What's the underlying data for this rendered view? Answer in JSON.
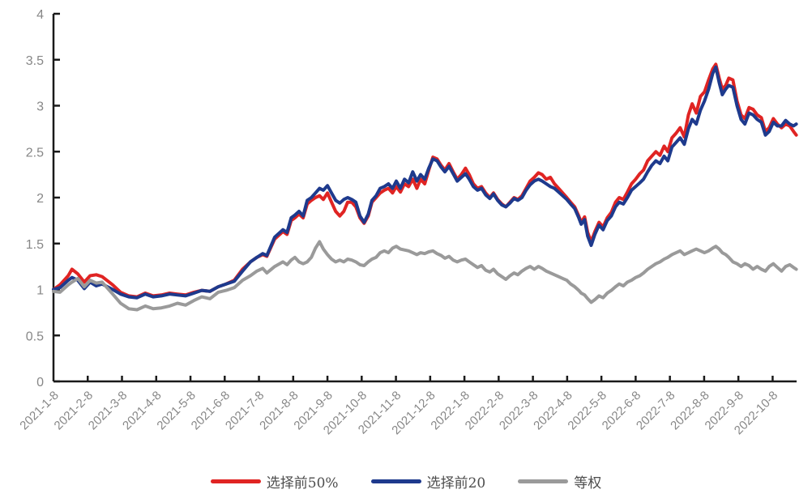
{
  "chart_data": {
    "type": "line",
    "title": "",
    "grid": false,
    "legend_position": "bottom",
    "x_axis": {
      "unit": "months since 2021-1-8",
      "range": [
        0,
        21.7
      ],
      "tick_interval_months": 1,
      "tick_labels": [
        "2021-1-8",
        "2021-2-8",
        "2021-3-8",
        "2021-4-8",
        "2021-5-8",
        "2021-6-8",
        "2021-7-8",
        "2021-8-8",
        "2021-9-8",
        "2021-10-8",
        "2021-11-8",
        "2021-12-8",
        "2022-1-8",
        "2022-2-8",
        "2022-3-8",
        "2022-4-8",
        "2022-5-8",
        "2022-6-8",
        "2022-7-8",
        "2022-8-8",
        "2022-9-8",
        "2022-10-8"
      ]
    },
    "y_axis": {
      "range": [
        0,
        4
      ],
      "tick_labels": [
        "0",
        "0.5",
        "1",
        "1.5",
        "2",
        "2.5",
        "3",
        "3.5",
        "4"
      ],
      "tick_values": [
        0,
        0.5,
        1,
        1.5,
        2,
        2.5,
        3,
        3.5,
        4
      ]
    },
    "x_months": [
      0.0,
      0.19,
      0.43,
      0.54,
      0.71,
      0.9,
      1.07,
      1.25,
      1.42,
      1.73,
      1.96,
      2.2,
      2.44,
      2.68,
      2.91,
      3.15,
      3.39,
      3.62,
      3.86,
      4.1,
      4.33,
      4.57,
      4.81,
      5.04,
      5.28,
      5.52,
      5.75,
      5.94,
      6.11,
      6.23,
      6.46,
      6.7,
      6.82,
      6.94,
      7.05,
      7.17,
      7.29,
      7.41,
      7.53,
      7.65,
      7.77,
      7.88,
      8.0,
      8.12,
      8.24,
      8.36,
      8.48,
      8.59,
      8.71,
      8.83,
      8.95,
      9.07,
      9.19,
      9.3,
      9.42,
      9.54,
      9.66,
      9.78,
      9.9,
      10.01,
      10.13,
      10.25,
      10.37,
      10.49,
      10.61,
      10.72,
      10.84,
      10.96,
      11.08,
      11.2,
      11.32,
      11.43,
      11.55,
      11.67,
      11.79,
      11.91,
      12.03,
      12.14,
      12.26,
      12.38,
      12.5,
      12.62,
      12.74,
      12.85,
      12.97,
      13.09,
      13.21,
      13.33,
      13.45,
      13.56,
      13.68,
      13.8,
      13.92,
      14.04,
      14.16,
      14.27,
      14.39,
      14.51,
      14.63,
      14.75,
      14.87,
      14.99,
      15.1,
      15.22,
      15.34,
      15.41,
      15.51,
      15.6,
      15.7,
      15.81,
      15.93,
      16.05,
      16.17,
      16.29,
      16.41,
      16.52,
      16.64,
      16.76,
      16.88,
      17.0,
      17.12,
      17.23,
      17.35,
      17.47,
      17.59,
      17.71,
      17.83,
      17.94,
      18.06,
      18.18,
      18.3,
      18.42,
      18.54,
      18.65,
      18.77,
      18.89,
      19.01,
      19.13,
      19.25,
      19.34,
      19.44,
      19.53,
      19.63,
      19.72,
      19.84,
      19.96,
      20.08,
      20.19,
      20.31,
      20.43,
      20.55,
      20.67,
      20.79,
      20.9,
      21.02,
      21.14,
      21.26,
      21.38,
      21.5,
      21.61,
      21.69
    ],
    "series": [
      {
        "id": "top50",
        "name": "选择前50%",
        "color": "#e02423",
        "values": [
          1.0,
          1.05,
          1.15,
          1.22,
          1.17,
          1.08,
          1.15,
          1.16,
          1.14,
          1.05,
          0.97,
          0.93,
          0.92,
          0.96,
          0.93,
          0.94,
          0.96,
          0.95,
          0.94,
          0.97,
          0.99,
          0.98,
          1.03,
          1.06,
          1.1,
          1.22,
          1.3,
          1.35,
          1.38,
          1.36,
          1.55,
          1.63,
          1.6,
          1.75,
          1.78,
          1.82,
          1.78,
          1.93,
          1.97,
          2.0,
          2.02,
          1.98,
          2.05,
          1.95,
          1.85,
          1.8,
          1.85,
          1.95,
          1.95,
          1.9,
          1.78,
          1.72,
          1.8,
          1.95,
          2.0,
          2.05,
          2.08,
          2.1,
          2.05,
          2.12,
          2.06,
          2.15,
          2.12,
          2.2,
          2.1,
          2.2,
          2.15,
          2.3,
          2.44,
          2.42,
          2.35,
          2.3,
          2.37,
          2.28,
          2.2,
          2.25,
          2.32,
          2.25,
          2.15,
          2.1,
          2.12,
          2.05,
          2.0,
          2.05,
          1.98,
          1.93,
          1.9,
          1.95,
          2.0,
          1.98,
          2.02,
          2.1,
          2.18,
          2.22,
          2.27,
          2.25,
          2.2,
          2.22,
          2.15,
          2.1,
          2.05,
          2.0,
          1.95,
          1.9,
          1.8,
          1.73,
          1.79,
          1.62,
          1.52,
          1.63,
          1.73,
          1.68,
          1.78,
          1.84,
          1.95,
          2.0,
          1.98,
          2.06,
          2.15,
          2.2,
          2.26,
          2.3,
          2.4,
          2.45,
          2.5,
          2.46,
          2.56,
          2.5,
          2.65,
          2.7,
          2.76,
          2.66,
          2.9,
          3.02,
          2.92,
          3.1,
          3.15,
          3.28,
          3.4,
          3.45,
          3.3,
          3.18,
          3.22,
          3.3,
          3.28,
          3.05,
          2.9,
          2.86,
          2.98,
          2.96,
          2.9,
          2.87,
          2.72,
          2.76,
          2.86,
          2.8,
          2.76,
          2.8,
          2.78,
          2.72,
          2.68
        ]
      },
      {
        "id": "top20",
        "name": "选择前20",
        "color": "#1e3a8d",
        "values": [
          1.0,
          1.02,
          1.1,
          1.13,
          1.1,
          1.01,
          1.08,
          1.04,
          1.06,
          1.0,
          0.95,
          0.92,
          0.91,
          0.95,
          0.92,
          0.93,
          0.95,
          0.94,
          0.93,
          0.96,
          0.99,
          0.98,
          1.03,
          1.06,
          1.09,
          1.2,
          1.3,
          1.35,
          1.39,
          1.37,
          1.57,
          1.65,
          1.62,
          1.78,
          1.81,
          1.85,
          1.8,
          1.97,
          2.0,
          2.05,
          2.1,
          2.08,
          2.13,
          2.05,
          1.97,
          1.94,
          1.98,
          2.0,
          1.98,
          1.95,
          1.8,
          1.73,
          1.82,
          1.97,
          2.02,
          2.1,
          2.12,
          2.15,
          2.1,
          2.18,
          2.1,
          2.2,
          2.16,
          2.28,
          2.18,
          2.25,
          2.2,
          2.32,
          2.42,
          2.4,
          2.33,
          2.28,
          2.34,
          2.26,
          2.18,
          2.22,
          2.26,
          2.2,
          2.12,
          2.08,
          2.1,
          2.03,
          1.99,
          2.04,
          1.97,
          1.92,
          1.9,
          1.94,
          1.99,
          1.97,
          2.0,
          2.08,
          2.14,
          2.18,
          2.2,
          2.18,
          2.15,
          2.12,
          2.1,
          2.06,
          2.02,
          1.98,
          1.93,
          1.88,
          1.78,
          1.71,
          1.76,
          1.58,
          1.48,
          1.6,
          1.7,
          1.65,
          1.75,
          1.8,
          1.9,
          1.95,
          1.93,
          2.0,
          2.08,
          2.12,
          2.16,
          2.2,
          2.28,
          2.35,
          2.4,
          2.37,
          2.45,
          2.4,
          2.55,
          2.6,
          2.65,
          2.58,
          2.75,
          2.85,
          2.8,
          2.95,
          3.05,
          3.18,
          3.35,
          3.42,
          3.25,
          3.12,
          3.18,
          3.22,
          3.2,
          3.0,
          2.85,
          2.8,
          2.92,
          2.9,
          2.85,
          2.82,
          2.68,
          2.72,
          2.82,
          2.78,
          2.78,
          2.84,
          2.8,
          2.78,
          2.8
        ]
      },
      {
        "id": "equal-weight",
        "name": "等权",
        "color": "#9a9a9a",
        "values": [
          0.98,
          0.97,
          1.05,
          1.08,
          1.12,
          1.03,
          1.1,
          1.07,
          1.08,
          0.95,
          0.85,
          0.79,
          0.78,
          0.82,
          0.79,
          0.8,
          0.82,
          0.85,
          0.83,
          0.88,
          0.92,
          0.9,
          0.97,
          0.99,
          1.02,
          1.1,
          1.15,
          1.2,
          1.23,
          1.18,
          1.25,
          1.3,
          1.27,
          1.32,
          1.35,
          1.3,
          1.28,
          1.3,
          1.35,
          1.45,
          1.52,
          1.44,
          1.38,
          1.33,
          1.3,
          1.32,
          1.3,
          1.33,
          1.32,
          1.3,
          1.27,
          1.26,
          1.3,
          1.33,
          1.35,
          1.4,
          1.42,
          1.4,
          1.45,
          1.47,
          1.44,
          1.43,
          1.42,
          1.4,
          1.38,
          1.4,
          1.39,
          1.41,
          1.42,
          1.39,
          1.37,
          1.34,
          1.36,
          1.32,
          1.3,
          1.32,
          1.33,
          1.3,
          1.27,
          1.24,
          1.26,
          1.21,
          1.19,
          1.22,
          1.17,
          1.14,
          1.11,
          1.15,
          1.18,
          1.16,
          1.2,
          1.23,
          1.25,
          1.22,
          1.25,
          1.23,
          1.2,
          1.18,
          1.16,
          1.14,
          1.12,
          1.1,
          1.06,
          1.03,
          0.99,
          0.96,
          0.94,
          0.9,
          0.86,
          0.89,
          0.93,
          0.91,
          0.96,
          0.99,
          1.03,
          1.06,
          1.04,
          1.08,
          1.1,
          1.13,
          1.15,
          1.18,
          1.22,
          1.25,
          1.28,
          1.3,
          1.33,
          1.35,
          1.38,
          1.4,
          1.42,
          1.38,
          1.4,
          1.42,
          1.44,
          1.42,
          1.4,
          1.42,
          1.45,
          1.47,
          1.44,
          1.4,
          1.38,
          1.35,
          1.3,
          1.28,
          1.25,
          1.28,
          1.26,
          1.22,
          1.25,
          1.22,
          1.2,
          1.25,
          1.28,
          1.24,
          1.2,
          1.25,
          1.27,
          1.24,
          1.22
        ]
      }
    ]
  },
  "legend": {
    "items": [
      {
        "label": "选择前50%"
      },
      {
        "label": "选择前20"
      },
      {
        "label": "等权"
      }
    ]
  },
  "colors": {
    "axis": "#1a1a1a",
    "tick_text": "#878787",
    "legend_text": "#4d4d4d",
    "background": "#ffffff"
  }
}
